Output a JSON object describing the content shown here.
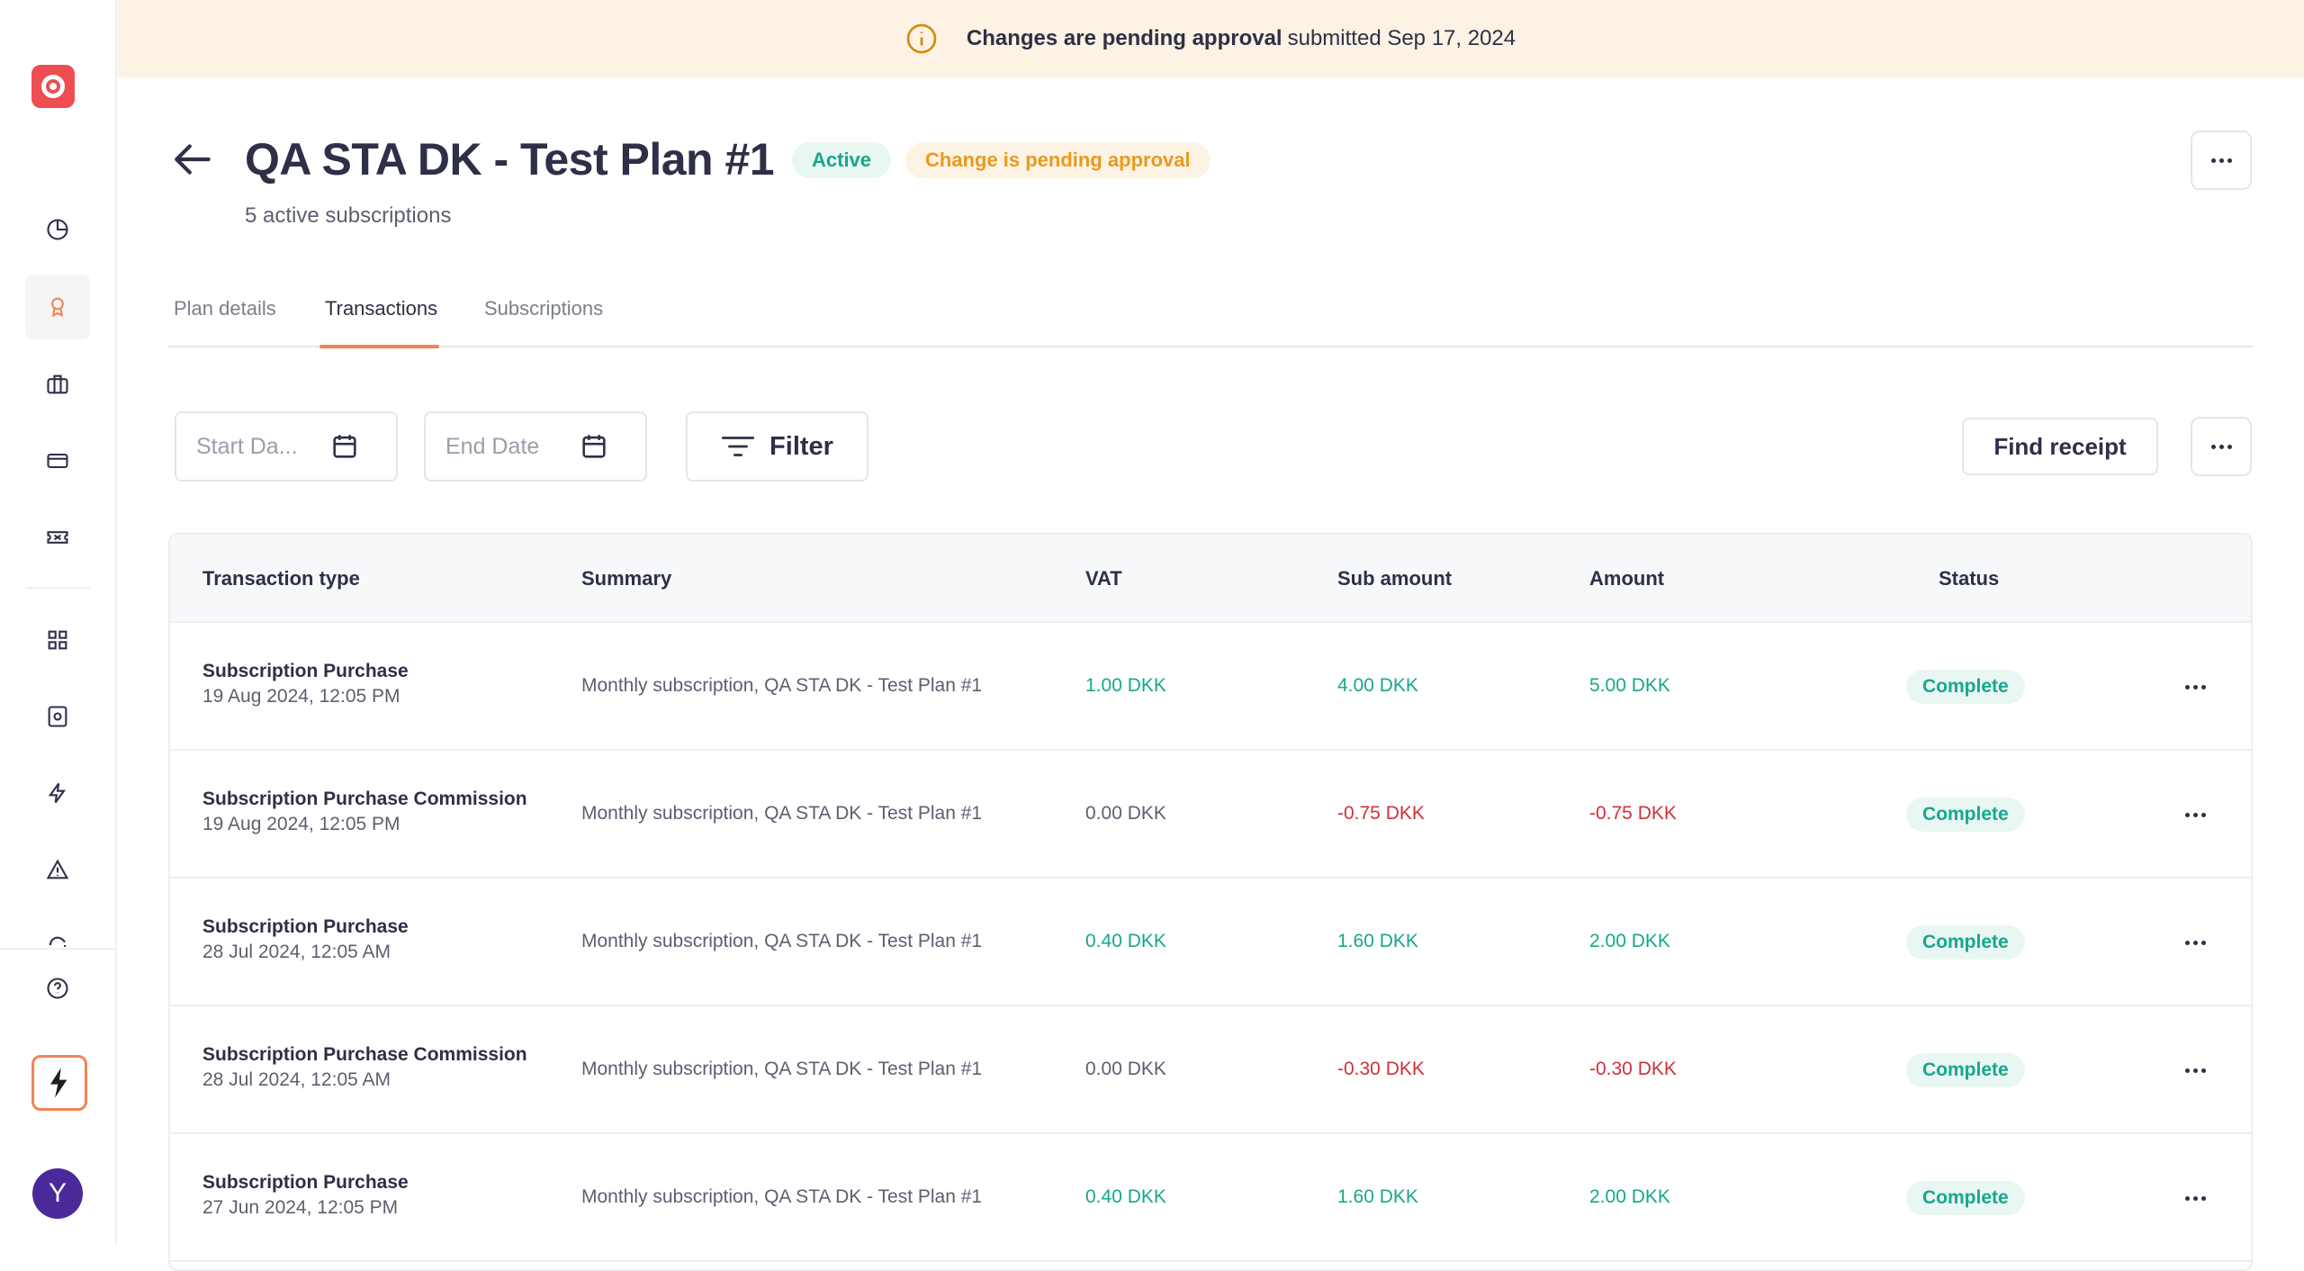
{
  "banner": {
    "bold_text": "Changes are pending approval",
    "rest_text": "submitted Sep 17, 2024"
  },
  "header": {
    "title": "QA STA DK - Test Plan #1",
    "active_badge": "Active",
    "pending_badge": "Change is pending approval",
    "subtitle": "5 active subscriptions"
  },
  "tabs": [
    {
      "label": "Plan details"
    },
    {
      "label": "Transactions"
    },
    {
      "label": "Subscriptions"
    }
  ],
  "toolbar": {
    "start_date_placeholder": "Start Da...",
    "end_date_placeholder": "End Date",
    "filter_label": "Filter",
    "find_receipt_label": "Find receipt"
  },
  "sidebar": {
    "icons": [
      "pie-chart-icon",
      "award-icon",
      "briefcase-icon",
      "credit-card-icon",
      "ticket-icon",
      "grid-icon",
      "safe-icon",
      "lightning-icon",
      "warning-icon",
      "refresh-icon",
      "help-icon"
    ],
    "avatar_initial": "Y"
  },
  "table": {
    "columns": [
      "Transaction type",
      "Summary",
      "VAT",
      "Sub amount",
      "Amount",
      "Status"
    ],
    "rows": [
      {
        "type": "Subscription Purchase",
        "date": "19 Aug 2024, 12:05 PM",
        "summary": "Monthly subscription, QA STA DK - Test Plan #1",
        "vat": "1.00 DKK",
        "sub_amount": "4.00 DKK",
        "amount": "5.00 DKK",
        "status": "Complete"
      },
      {
        "type": "Subscription Purchase Commission",
        "date": "19 Aug 2024, 12:05 PM",
        "summary": "Monthly subscription, QA STA DK - Test Plan #1",
        "vat": "0.00 DKK",
        "sub_amount": "-0.75 DKK",
        "amount": "-0.75 DKK",
        "status": "Complete"
      },
      {
        "type": "Subscription Purchase",
        "date": "28 Jul 2024, 12:05 AM",
        "summary": "Monthly subscription, QA STA DK - Test Plan #1",
        "vat": "0.40 DKK",
        "sub_amount": "1.60 DKK",
        "amount": "2.00 DKK",
        "status": "Complete"
      },
      {
        "type": "Subscription Purchase Commission",
        "date": "28 Jul 2024, 12:05 AM",
        "summary": "Monthly subscription, QA STA DK - Test Plan #1",
        "vat": "0.00 DKK",
        "sub_amount": "-0.30 DKK",
        "amount": "-0.30 DKK",
        "status": "Complete"
      },
      {
        "type": "Subscription Purchase",
        "date": "27 Jun 2024, 12:05 PM",
        "summary": "Monthly subscription, QA STA DK - Test Plan #1",
        "vat": "0.40 DKK",
        "sub_amount": "1.60 DKK",
        "amount": "2.00 DKK",
        "status": "Complete"
      }
    ]
  },
  "colors": {
    "accent": "#f08454",
    "positive": "#16a88a",
    "negative": "#d0303a",
    "pending": "#e89a1e",
    "banner_bg": "#fdf3e4"
  }
}
